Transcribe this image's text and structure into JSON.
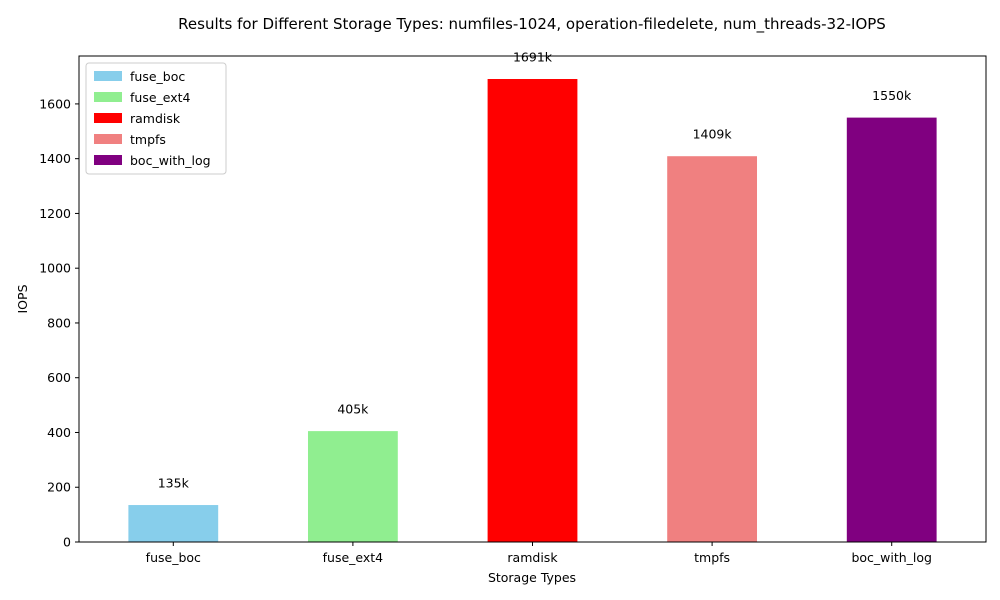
{
  "chart_data": {
    "type": "bar",
    "title": "Results for Different Storage Types: numfiles-1024, operation-filedelete, num_threads-32-IOPS",
    "xlabel": "Storage Types",
    "ylabel": "IOPS",
    "categories": [
      "fuse_boc",
      "fuse_ext4",
      "ramdisk",
      "tmpfs",
      "boc_with_log"
    ],
    "values": [
      135,
      405,
      1691,
      1409,
      1550
    ],
    "value_labels": [
      "135k",
      "405k",
      "1691k",
      "1409k",
      "1550k"
    ],
    "colors": [
      "#87CEEB",
      "#90EE90",
      "#FF0000",
      "#F08080",
      "#800080"
    ],
    "ylim": [
      0,
      1775
    ],
    "yticks": [
      0,
      200,
      400,
      600,
      800,
      1000,
      1200,
      1400,
      1600
    ],
    "grid": false,
    "legend": {
      "position": "top-left",
      "entries": [
        "fuse_boc",
        "fuse_ext4",
        "ramdisk",
        "tmpfs",
        "boc_with_log"
      ]
    }
  }
}
